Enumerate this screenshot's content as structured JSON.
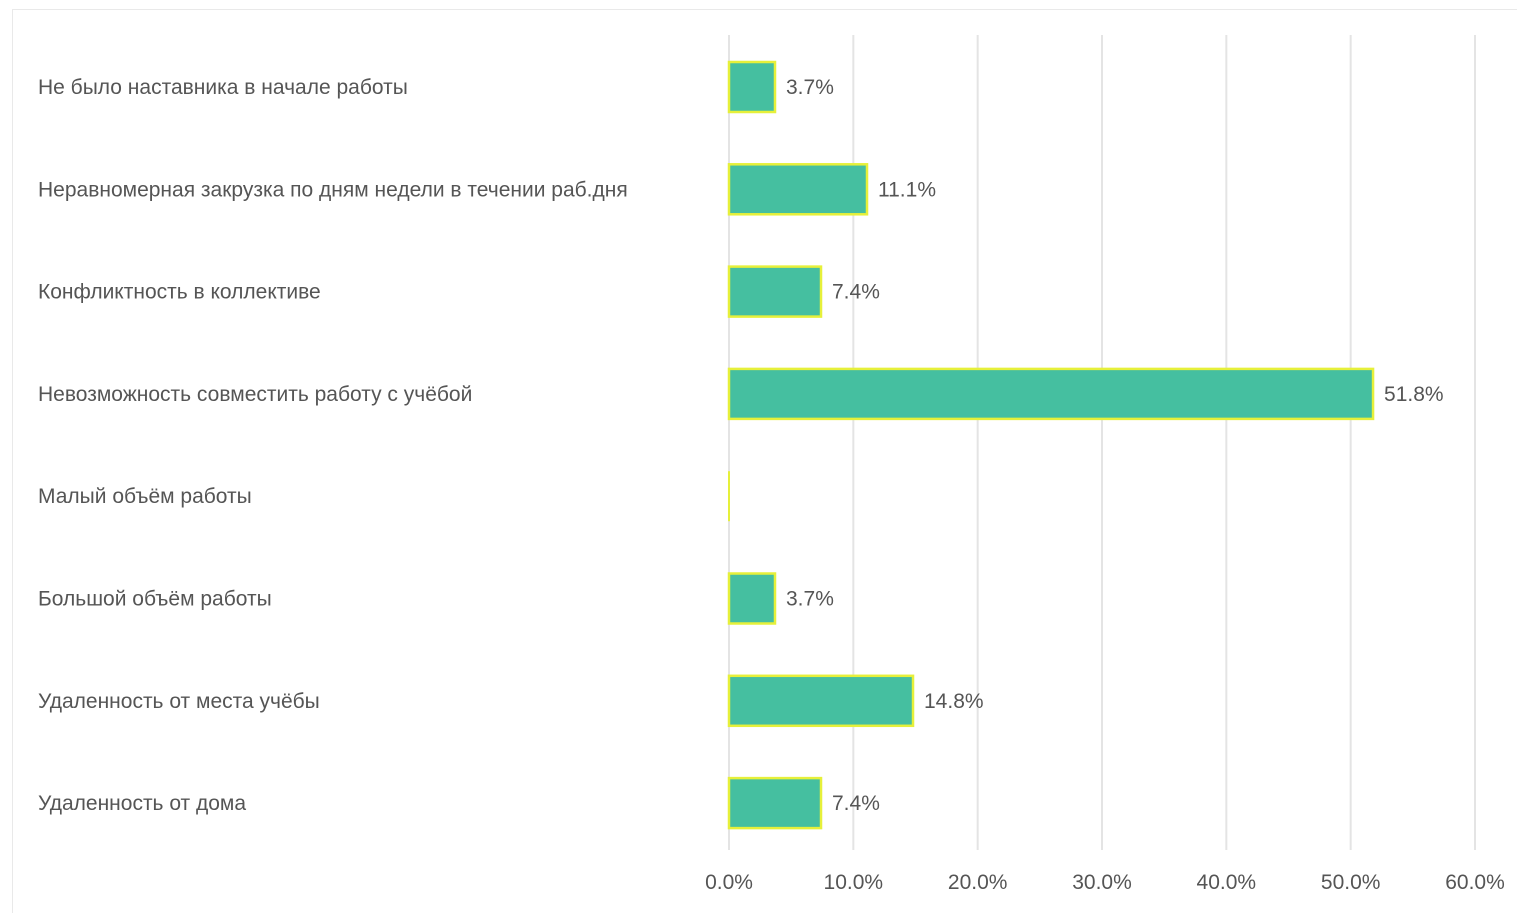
{
  "chart_data": {
    "type": "bar",
    "orientation": "horizontal",
    "categories": [
      "Не было наставника в начале работы",
      "Неравномерная закрузка по дням недели в течении раб.дня",
      "Конфликтность в коллективе",
      "Невозможность совместить работу с учёбой",
      "Малый объём работы",
      "Большой объём работы",
      "Удаленность от места учёбы",
      "Удаленность от дома"
    ],
    "values": [
      3.7,
      11.1,
      7.4,
      51.8,
      0,
      3.7,
      14.8,
      7.4
    ],
    "value_labels": [
      "3.7%",
      "11.1%",
      "7.4%",
      "51.8%",
      "",
      "3.7%",
      "14.8%",
      "7.4%"
    ],
    "xlim": [
      0,
      60
    ],
    "x_ticks": [
      0,
      10,
      20,
      30,
      40,
      50,
      60
    ],
    "x_tick_labels": [
      "0.0%",
      "10.0%",
      "20.0%",
      "30.0%",
      "40.0%",
      "50.0%",
      "60.0%"
    ],
    "title": "",
    "xlabel": "",
    "ylabel": "",
    "grid": "vertical",
    "legend": "none",
    "colors": {
      "bar_fill": "#45bfa0",
      "bar_stroke": "#e6f03a",
      "grid": "#e4e4e4",
      "text": "#555555"
    }
  }
}
